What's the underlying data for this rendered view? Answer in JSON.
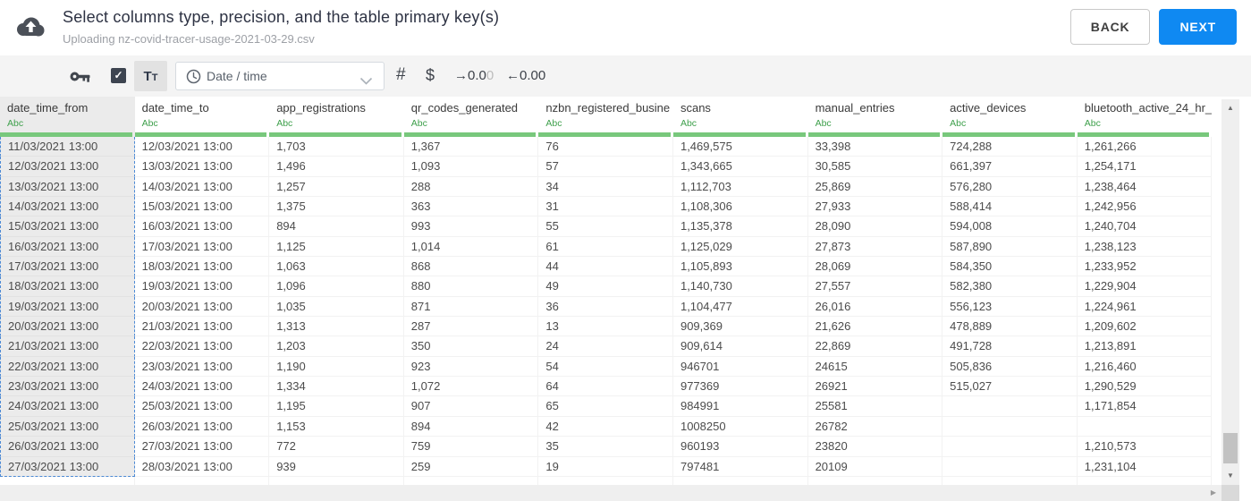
{
  "header": {
    "title": "Select columns type, precision, and the table primary key(s)",
    "subtitle": "Uploading nz-covid-tracer-usage-2021-03-29.csv",
    "buttons": {
      "back": "BACK",
      "next": "NEXT"
    }
  },
  "toolbar": {
    "checkbox_check": "✓",
    "text_type_button": {
      "big": "T",
      "small": "T"
    },
    "type_dropdown": {
      "value": "Date / time"
    },
    "number_symbol": "#",
    "currency_symbol": "$",
    "add_decimal": {
      "main": "→0.0",
      "faded": "0"
    },
    "remove_decimal": "←0.00"
  },
  "table": {
    "type_tag": "Abc",
    "selected_column": "date_time_from",
    "columns": [
      "date_time_from",
      "date_time_to",
      "app_registrations",
      "qr_codes_generated",
      "nzbn_registered_busine",
      "scans",
      "manual_entries",
      "active_devices",
      "bluetooth_active_24_hr_"
    ],
    "rows": [
      [
        "11/03/2021 13:00",
        "12/03/2021 13:00",
        "1,703",
        "1,367",
        "76",
        "1,469,575",
        "33,398",
        "724,288",
        "1,261,266"
      ],
      [
        "12/03/2021 13:00",
        "13/03/2021 13:00",
        "1,496",
        "1,093",
        "57",
        "1,343,665",
        "30,585",
        "661,397",
        "1,254,171"
      ],
      [
        "13/03/2021 13:00",
        "14/03/2021 13:00",
        "1,257",
        "288",
        "34",
        "1,112,703",
        "25,869",
        "576,280",
        "1,238,464"
      ],
      [
        "14/03/2021 13:00",
        "15/03/2021 13:00",
        "1,375",
        "363",
        "31",
        "1,108,306",
        "27,933",
        "588,414",
        "1,242,956"
      ],
      [
        "15/03/2021 13:00",
        "16/03/2021 13:00",
        "894",
        "993",
        "55",
        "1,135,378",
        "28,090",
        "594,008",
        "1,240,704"
      ],
      [
        "16/03/2021 13:00",
        "17/03/2021 13:00",
        "1,125",
        "1,014",
        "61",
        "1,125,029",
        "27,873",
        "587,890",
        "1,238,123"
      ],
      [
        "17/03/2021 13:00",
        "18/03/2021 13:00",
        "1,063",
        "868",
        "44",
        "1,105,893",
        "28,069",
        "584,350",
        "1,233,952"
      ],
      [
        "18/03/2021 13:00",
        "19/03/2021 13:00",
        "1,096",
        "880",
        "49",
        "1,140,730",
        "27,557",
        "582,380",
        "1,229,904"
      ],
      [
        "19/03/2021 13:00",
        "20/03/2021 13:00",
        "1,035",
        "871",
        "36",
        "1,104,477",
        "26,016",
        "556,123",
        "1,224,961"
      ],
      [
        "20/03/2021 13:00",
        "21/03/2021 13:00",
        "1,313",
        "287",
        "13",
        "909,369",
        "21,626",
        "478,889",
        "1,209,602"
      ],
      [
        "21/03/2021 13:00",
        "22/03/2021 13:00",
        "1,203",
        "350",
        "24",
        "909,614",
        "22,869",
        "491,728",
        "1,213,891"
      ],
      [
        "22/03/2021 13:00",
        "23/03/2021 13:00",
        "1,190",
        "923",
        "54",
        "946701",
        "24615",
        "505,836",
        "1,216,460"
      ],
      [
        "23/03/2021 13:00",
        "24/03/2021 13:00",
        "1,334",
        "1,072",
        "64",
        "977369",
        "26921",
        "515,027",
        "1,290,529"
      ],
      [
        "24/03/2021 13:00",
        "25/03/2021 13:00",
        "1,195",
        "907",
        "65",
        "984991",
        "25581",
        "",
        "1,171,854"
      ],
      [
        "25/03/2021 13:00",
        "26/03/2021 13:00",
        "1,153",
        "894",
        "42",
        "1008250",
        "26782",
        "",
        ""
      ],
      [
        "26/03/2021 13:00",
        "27/03/2021 13:00",
        "772",
        "759",
        "35",
        "960193",
        "23820",
        "",
        "1,210,573"
      ],
      [
        "27/03/2021 13:00",
        "28/03/2021 13:00",
        "939",
        "259",
        "19",
        "797481",
        "20109",
        "",
        "1,231,104"
      ]
    ]
  },
  "scrollbar": {
    "up": "▲",
    "down": "▼",
    "right": "▶"
  },
  "colors": {
    "accent_blue": "#0f89f2",
    "type_green": "#3fa04c",
    "green_bar": "#78c87c",
    "selected_column_border": "#4d8ad5"
  }
}
